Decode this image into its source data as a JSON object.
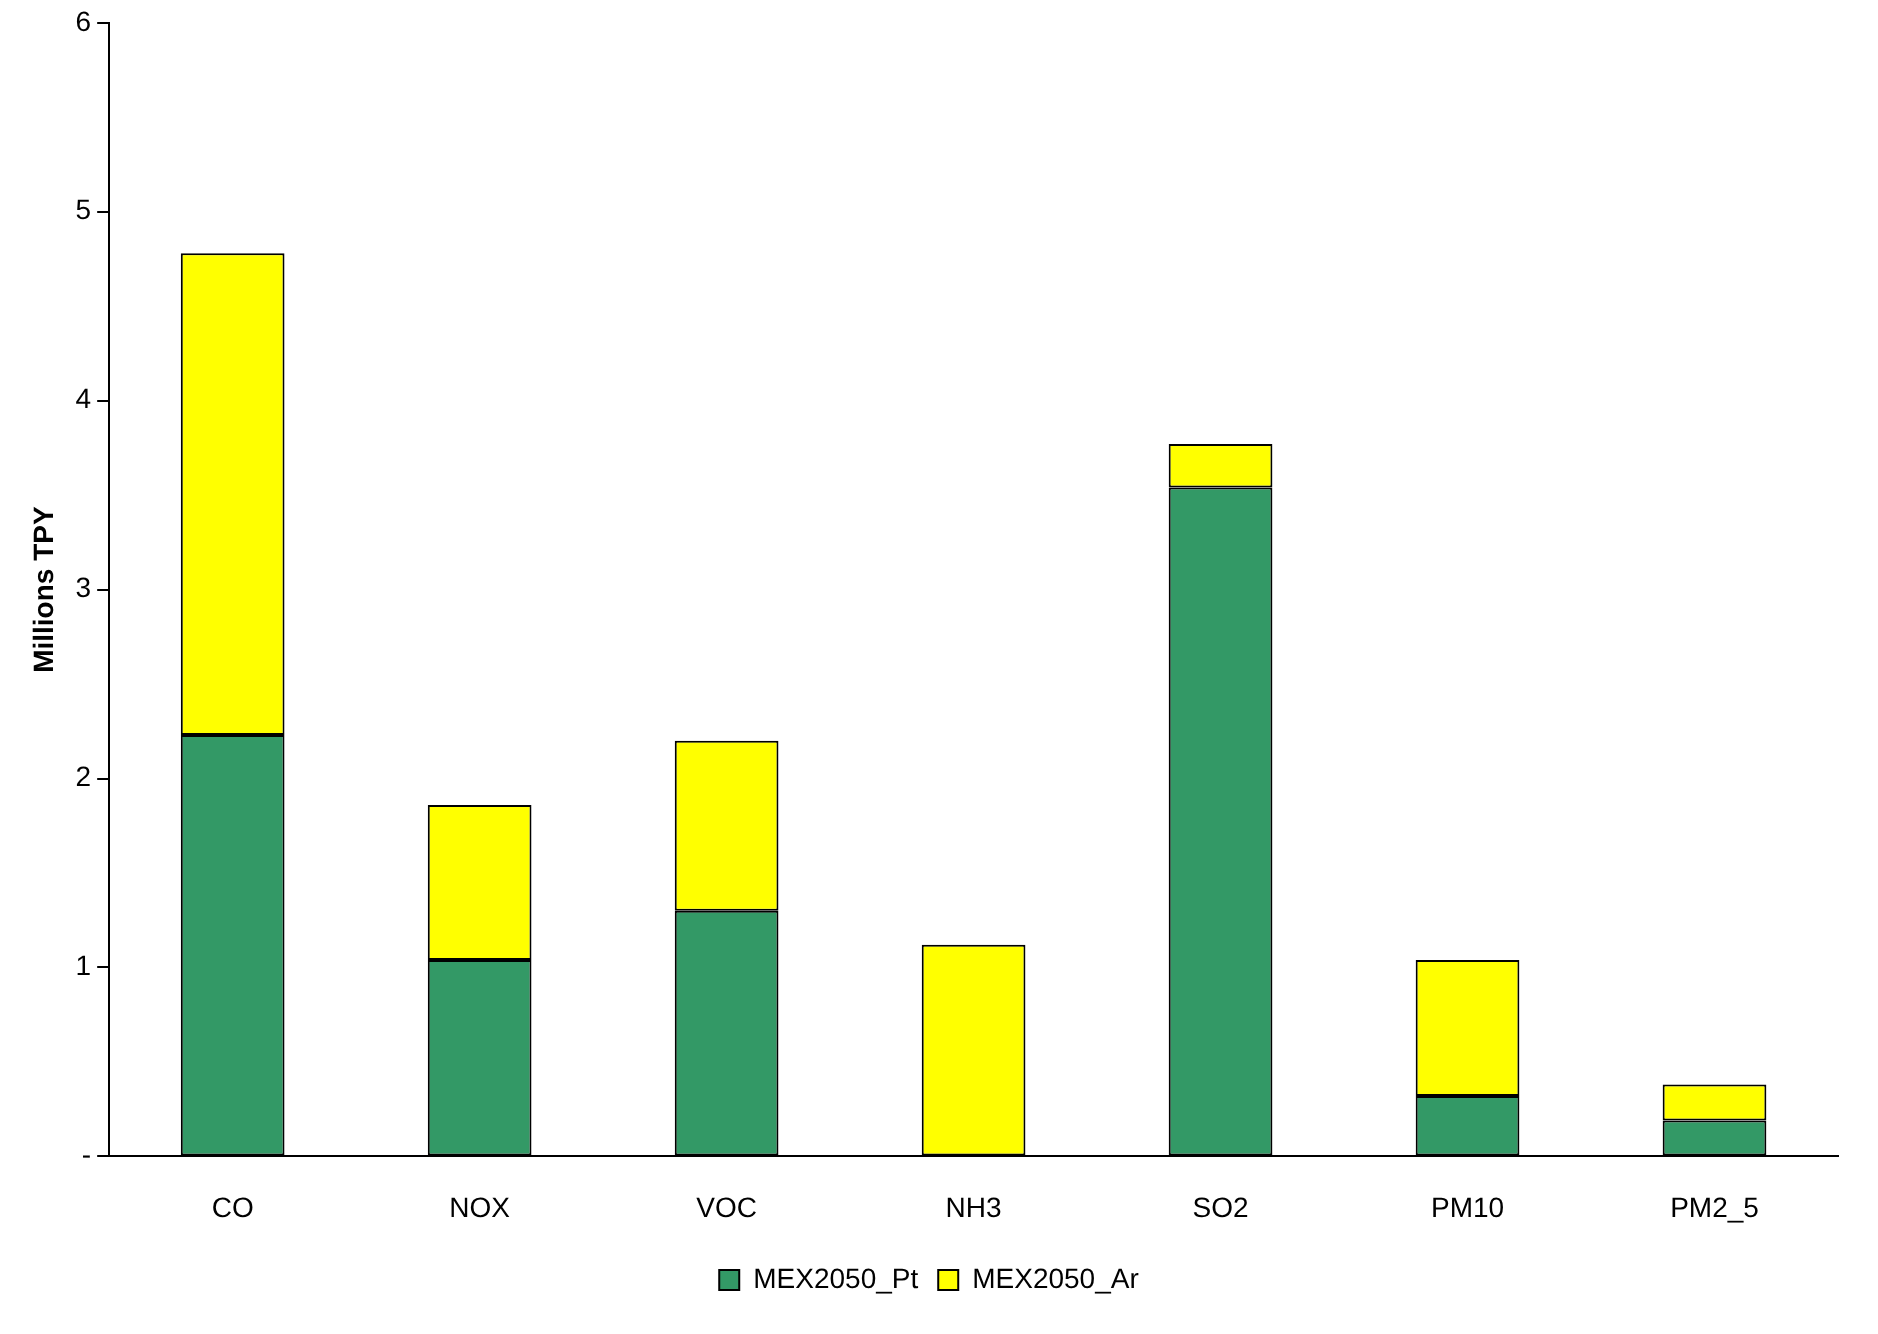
{
  "chart_data": {
    "type": "bar",
    "stacked": true,
    "ylabel": "Millions TPY",
    "categories": [
      "CO",
      "NOX",
      "VOC",
      "NH3",
      "SO2",
      "PM10",
      "PM2_5"
    ],
    "series": [
      {
        "name": "MEX2050_Pt",
        "color": "#339966",
        "values": [
          2.23,
          1.04,
          1.3,
          0,
          3.54,
          0.32,
          0.19
        ]
      },
      {
        "name": "MEX2050_Ar",
        "color": "#ffff00",
        "values": [
          2.55,
          0.82,
          0.9,
          1.12,
          0.23,
          0.72,
          0.19
        ]
      }
    ],
    "ylim": [
      0,
      6
    ],
    "yticks": [
      {
        "value": 0,
        "label": "-"
      },
      1,
      2,
      3,
      4,
      5,
      6
    ],
    "grid": false,
    "legend": "bottom"
  }
}
